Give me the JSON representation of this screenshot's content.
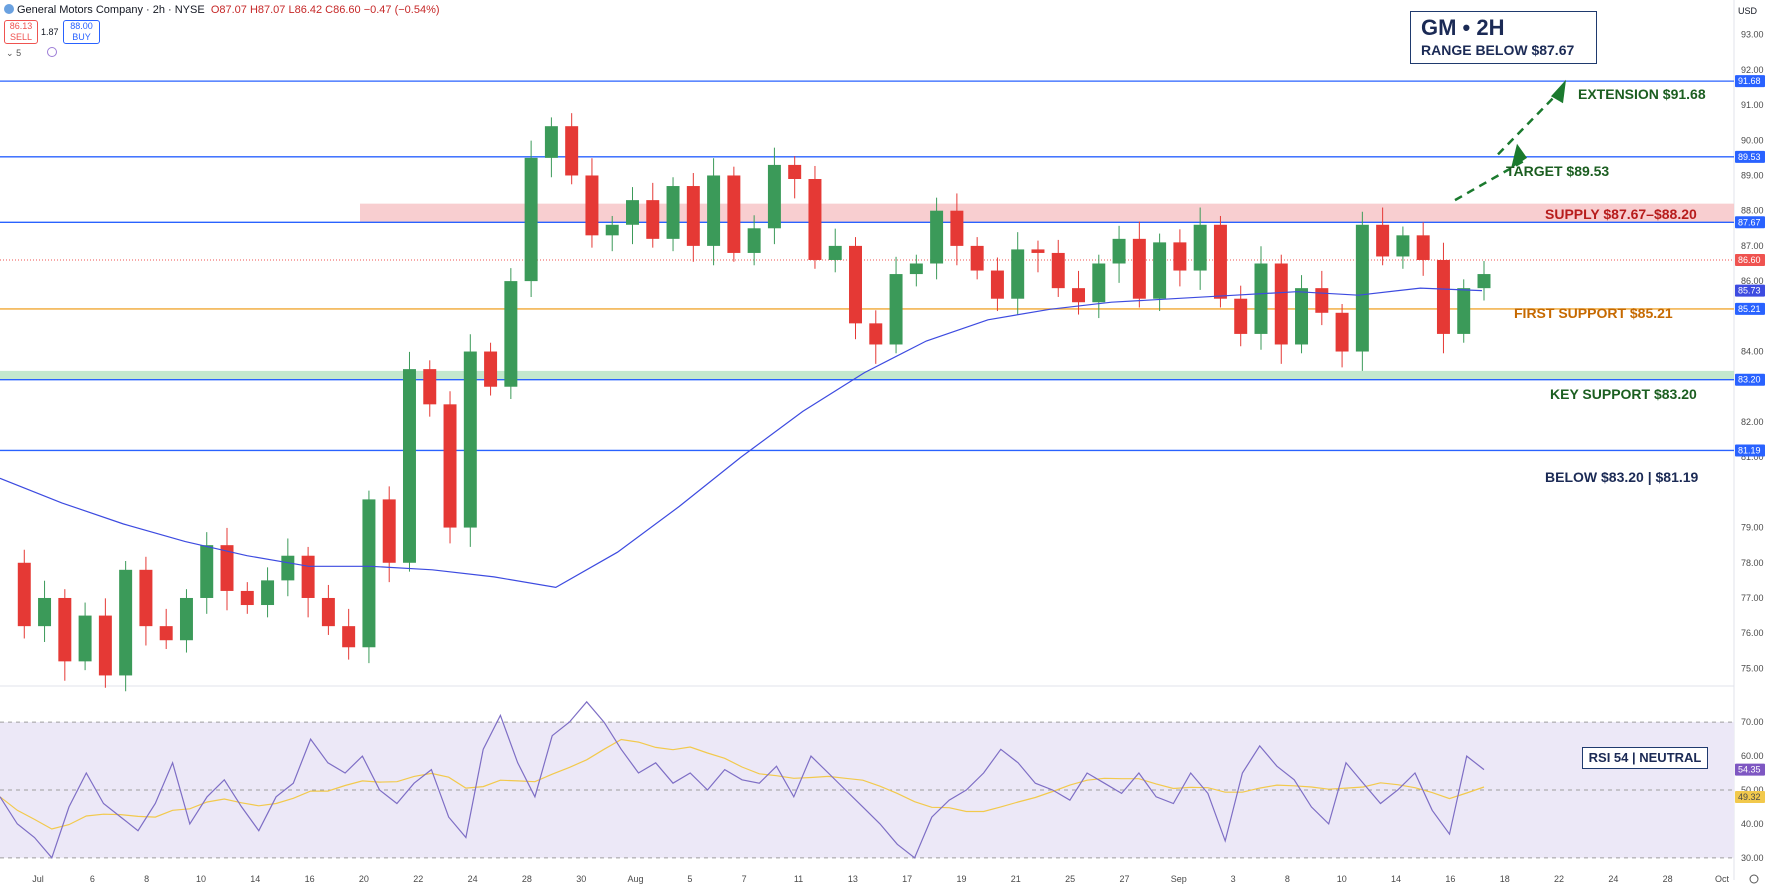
{
  "header": {
    "symbol_line": "General Motors Company · 2h · NYSE",
    "ohlc": "O87.07 H87.07 L86.42 C86.60 −0.47 (−0.54%)",
    "sell_price": "86.13",
    "sell_label": "SELL",
    "spread": "1.87",
    "buy_price": "88.00",
    "buy_label": "BUY",
    "indicator_count": "5",
    "currency": "USD"
  },
  "title_box": {
    "line1": "GM • 2H",
    "line2": "RANGE BELOW $87.67"
  },
  "annotations": {
    "extension": "EXTENSION  $91.68",
    "target": "TARGET  $89.53",
    "supply": "SUPPLY  $87.67–$88.20",
    "first_support": "FIRST SUPPORT  $85.21",
    "key_support": "KEY SUPPORT  $83.20",
    "below": "BELOW $83.20  |  $81.19",
    "rsi": "RSI 54  |  NEUTRAL"
  },
  "colors": {
    "level_line": "#2962ff",
    "first_support_line": "#f0a733",
    "supply_zone": "#f7c5c8",
    "key_support_zone": "#b9e4c5",
    "candle_up": "#26a69a",
    "candle_up_body": "#3b9a59",
    "candle_down": "#e53935",
    "ma_line": "#3d4be0",
    "rsi_line": "#7e6ec5",
    "rsi_ma": "#f2c94c",
    "rsi_band": "#ece8f7",
    "annotation_dark": "#1b2a55",
    "annotation_green": "#1b5e20",
    "annotation_red": "#b71c1c",
    "annotation_orange": "#c66900"
  },
  "chart_data": {
    "type": "line",
    "title": "General Motors Company · 2h · NYSE",
    "ylim": [
      74.5,
      93.7
    ],
    "price_axis_ticks": [
      "93.00",
      "92.00",
      "91.00",
      "90.00",
      "89.00",
      "88.00",
      "87.00",
      "86.00",
      "84.00",
      "82.00",
      "81.00",
      "79.00",
      "78.00",
      "77.00",
      "76.00",
      "75.00"
    ],
    "x_ticks": [
      "Jul",
      "6",
      "8",
      "10",
      "14",
      "16",
      "20",
      "22",
      "24",
      "28",
      "30",
      "Aug",
      "5",
      "7",
      "11",
      "13",
      "17",
      "19",
      "21",
      "25",
      "27",
      "Sep",
      "3",
      "8",
      "10",
      "14",
      "16",
      "18",
      "22",
      "24",
      "28",
      "Oct"
    ],
    "levels": [
      {
        "name": "extension",
        "value": 91.68,
        "tag": "91.68"
      },
      {
        "name": "target",
        "value": 89.53,
        "tag": "89.53"
      },
      {
        "name": "supply-low",
        "value": 87.67,
        "tag": "87.67"
      },
      {
        "name": "first-support",
        "value": 85.21,
        "tag": "85.21"
      },
      {
        "name": "key-support",
        "value": 83.2,
        "tag": "83.20"
      },
      {
        "name": "below",
        "value": 81.19,
        "tag": "81.19"
      }
    ],
    "supply_zone": [
      87.67,
      88.2
    ],
    "key_support_zone": [
      83.2,
      83.45
    ],
    "current_price": 86.6,
    "current_price_tag": "86.60",
    "ma_value_tag": "85.73",
    "price_path": [
      78.0,
      76.2,
      77.0,
      75.2,
      76.5,
      74.8,
      77.8,
      76.2,
      75.8,
      77.0,
      78.5,
      77.2,
      76.8,
      77.5,
      78.2,
      77.0,
      76.2,
      75.6,
      79.8,
      78.0,
      83.5,
      82.5,
      79.0,
      84.0,
      83.0,
      86.0,
      89.5,
      90.4,
      89.0,
      87.3,
      87.6,
      88.3,
      87.2,
      88.7,
      87.0,
      89.0,
      86.8,
      87.5,
      89.3,
      88.9,
      86.6,
      87.0,
      84.8,
      84.2,
      86.2,
      86.5,
      88.0,
      87.0,
      86.3,
      85.5,
      86.9,
      86.8,
      85.8,
      85.4,
      86.5,
      87.2,
      85.5,
      87.1,
      86.3,
      87.6,
      85.5,
      84.5,
      86.5,
      84.2,
      85.8,
      85.1,
      84.0,
      87.6,
      86.7,
      87.3,
      86.6,
      84.5,
      85.8,
      86.2
    ],
    "ma_path": [
      80.4,
      79.7,
      79.1,
      78.6,
      78.2,
      77.9,
      77.9,
      77.8,
      77.6,
      77.3,
      78.3,
      79.6,
      81.0,
      82.3,
      83.4,
      84.3,
      84.9,
      85.2,
      85.4,
      85.5,
      85.6,
      85.7,
      85.6,
      85.8,
      85.73
    ],
    "rsi": {
      "ylim": [
        27,
        78
      ],
      "ticks": [
        "70.00",
        "60.00",
        "50.00",
        "40.00",
        "30.00"
      ],
      "overbought": 70,
      "oversold": 30,
      "middle": 50,
      "value_tag": "54.35",
      "ma_tag": "49.32",
      "values": [
        48,
        40,
        36,
        30,
        45,
        55,
        46,
        42,
        38,
        46,
        58,
        40,
        48,
        53,
        45,
        38,
        48,
        52,
        65,
        58,
        55,
        60,
        50,
        46,
        52,
        56,
        42,
        36,
        62,
        72,
        58,
        48,
        66,
        70,
        76,
        70,
        62,
        55,
        58,
        52,
        55,
        50,
        56,
        53,
        52,
        57,
        48,
        60,
        55,
        50,
        45,
        40,
        34,
        30,
        42,
        47,
        50,
        55,
        62,
        58,
        52,
        50,
        47,
        55,
        52,
        49,
        55,
        48,
        46,
        55,
        49,
        35,
        55,
        63,
        57,
        53,
        45,
        40,
        58,
        52,
        46,
        50,
        55,
        44,
        37,
        60,
        56
      ]
    }
  }
}
